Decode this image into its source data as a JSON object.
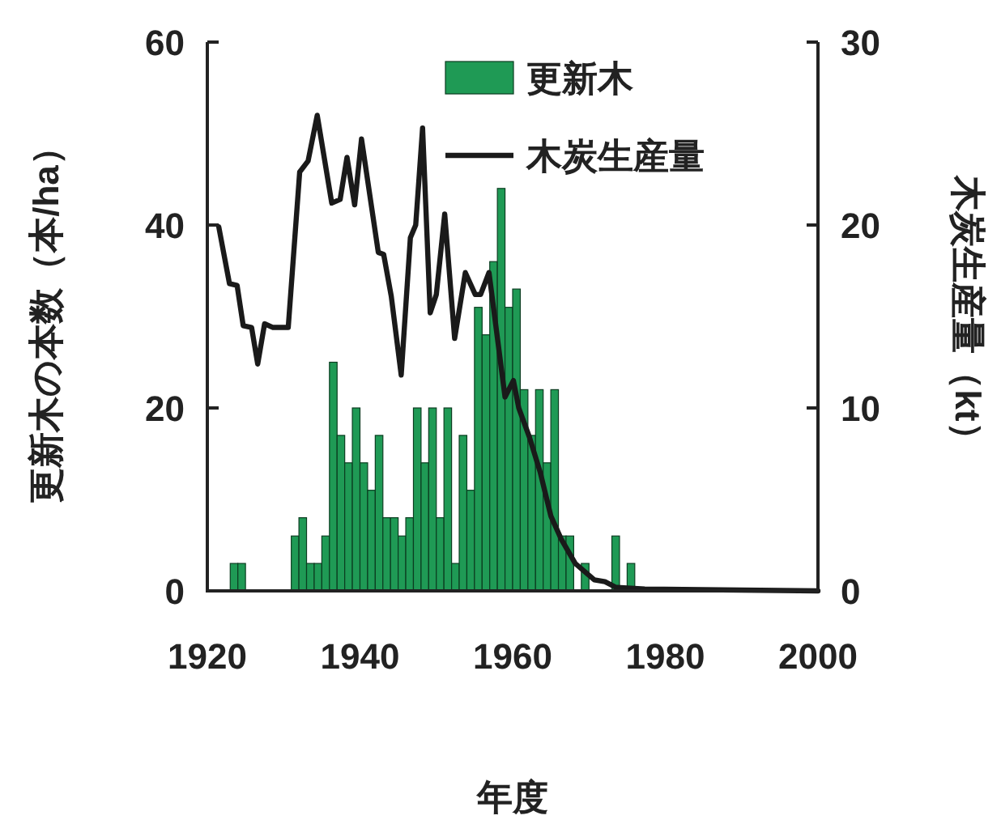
{
  "chart_data": {
    "type": "histogram",
    "xlabel": "年度",
    "ylabel": "更新木の本数（本/ha）",
    "y2label": "木炭生産量（kt）",
    "xlim": [
      1920,
      2000
    ],
    "xticks": [
      1920,
      1940,
      1960,
      1980,
      2000
    ],
    "ylim": [
      0,
      60
    ],
    "yticks": [
      0,
      20,
      40,
      60
    ],
    "y2lim": [
      0,
      30
    ],
    "y2ticks": [
      0,
      10,
      20,
      30
    ],
    "legend": "top right",
    "grid": false,
    "bins": [
      1920,
      1921,
      1922,
      1923,
      1924,
      1925,
      1926,
      1927,
      1928,
      1929,
      1930,
      1931,
      1932,
      1933,
      1934,
      1935,
      1936,
      1937,
      1938,
      1939,
      1940,
      1941,
      1942,
      1943,
      1944,
      1945,
      1946,
      1947,
      1948,
      1949,
      1950,
      1951,
      1952,
      1953,
      1954,
      1955,
      1956,
      1957,
      1958,
      1959,
      1960,
      1961,
      1962,
      1963,
      1964,
      1965,
      1966,
      1967,
      1968,
      1969,
      1970,
      1971,
      1972,
      1973,
      1974,
      1975,
      1976,
      1977,
      1978,
      1979,
      1980,
      1981,
      1982,
      1983,
      1984,
      1985,
      1986,
      1987,
      1988,
      1989,
      1990,
      1991,
      1992,
      1993,
      1994,
      1995,
      1996,
      1997,
      1998,
      1999,
      2000
    ],
    "series": [
      {
        "name": "更新木",
        "type": "histogram",
        "color": "#1f9a55",
        "values": [
          0,
          0,
          0,
          3,
          3,
          0,
          0,
          0,
          0,
          0,
          0,
          6,
          8,
          3,
          3,
          6,
          25,
          17,
          14,
          20,
          14,
          11,
          17,
          8,
          8,
          6,
          8,
          20,
          14,
          20,
          8,
          20,
          3,
          17,
          11,
          31,
          28,
          36,
          44,
          31,
          33,
          22,
          17,
          22,
          14,
          22,
          6,
          6,
          0,
          3,
          0,
          0,
          0,
          6,
          0,
          3,
          0,
          0,
          0,
          0,
          0,
          0,
          0,
          0,
          0,
          0,
          0,
          0,
          0,
          0,
          0,
          0,
          0,
          0,
          0,
          0,
          0,
          0,
          0,
          0
        ]
      },
      {
        "name": "木炭生産量",
        "type": "line",
        "axis": "y2",
        "color": "#1a1a1a",
        "x": [
          1921.5,
          1922.9,
          1923.9,
          1924.7,
          1925.8,
          1926.6,
          1927.5,
          1928.6,
          1930.6,
          1932.1,
          1933.2,
          1934.4,
          1936.3,
          1937.4,
          1938.3,
          1939.3,
          1940.2,
          1942.4,
          1943.1,
          1944.1,
          1945.4,
          1946.6,
          1947.3,
          1948.2,
          1949.2,
          1950,
          1951.1,
          1952.4,
          1953.8,
          1955.1,
          1955.8,
          1956.9,
          1959,
          1960.1,
          1960.8,
          1962.2,
          1963.6,
          1965,
          1966.4,
          1968.2,
          1970.7,
          1972.1,
          1973.5,
          1977.3,
          2000
        ],
        "values": [
          19.9,
          16.8,
          16.7,
          14.5,
          14.4,
          12.4,
          14.6,
          14.4,
          14.4,
          22.9,
          23.5,
          26,
          21.2,
          21.4,
          23.7,
          21.1,
          24.7,
          18.5,
          18.4,
          16.1,
          11.8,
          19.3,
          20,
          25.3,
          15.2,
          16.2,
          20.6,
          13.8,
          17.4,
          16.2,
          16.2,
          17.4,
          10.6,
          11.5,
          10,
          8.4,
          6.5,
          4.1,
          2.8,
          1.5,
          0.6,
          0.5,
          0.2,
          0.1,
          0
        ]
      }
    ]
  }
}
